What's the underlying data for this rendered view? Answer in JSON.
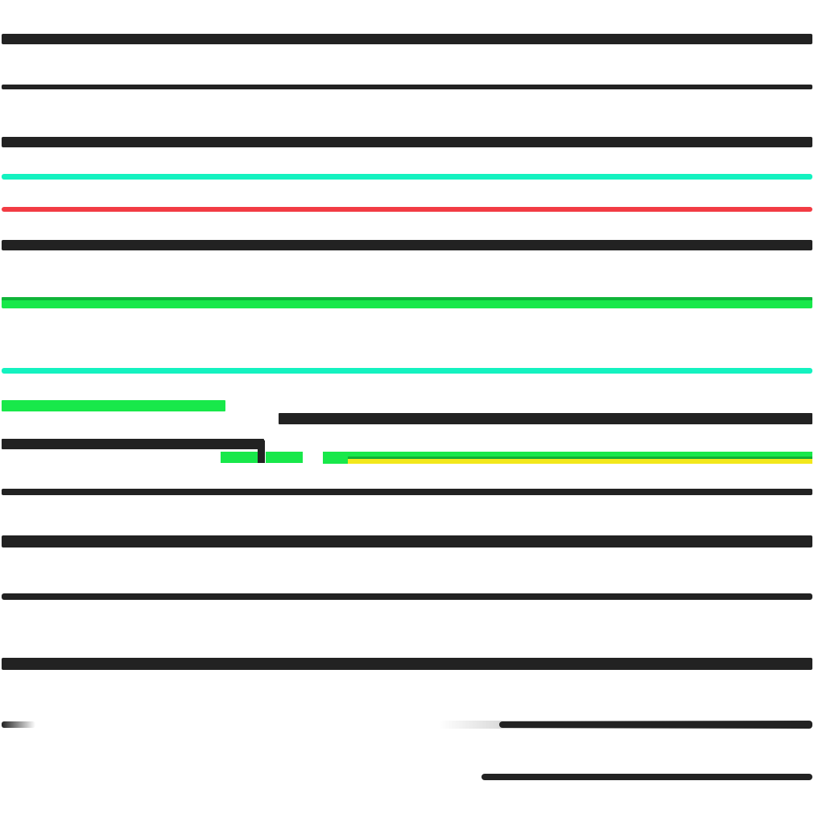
{
  "colors": {
    "background": "#ffffff",
    "black": "#222222",
    "cyan": "#14f2c0",
    "red": "#f23c44",
    "green": "#18e84a",
    "dark_green": "#0a8a2a",
    "yellow": "#f2e81c"
  }
}
